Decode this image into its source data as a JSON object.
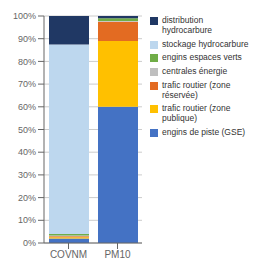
{
  "chart_data": {
    "type": "bar",
    "stacked": true,
    "categories": [
      "COVNM",
      "PM10"
    ],
    "series": [
      {
        "name": "engins de piste (GSE)",
        "color": "#4472C4",
        "values": [
          2.0,
          60.0
        ]
      },
      {
        "name": "trafic routier (zone\npublique)",
        "color": "#FFC000",
        "values": [
          0.5,
          29.0
        ]
      },
      {
        "name": "trafic routier (zone\nréservée)",
        "color": "#E36B22",
        "values": [
          0.5,
          8.5
        ]
      },
      {
        "name": "centrales énergie",
        "color": "#BFBFBF",
        "values": [
          0.3,
          0.3
        ]
      },
      {
        "name": "engins espaces verts",
        "color": "#70AD47",
        "values": [
          0.7,
          1.2
        ]
      },
      {
        "name": "stockage hydrocarbure",
        "color": "#BDD7EE",
        "values": [
          83.5,
          0.0
        ]
      },
      {
        "name": "distribution\nhydrocarbure",
        "color": "#203864",
        "values": [
          12.5,
          1.0
        ]
      }
    ],
    "ylim": [
      0,
      100
    ],
    "yticks": [
      {
        "value": 0,
        "label": "0%"
      },
      {
        "value": 10,
        "label": "10%"
      },
      {
        "value": 20,
        "label": "20%"
      },
      {
        "value": 30,
        "label": "30%"
      },
      {
        "value": 40,
        "label": "40%"
      },
      {
        "value": 50,
        "label": "50%"
      },
      {
        "value": 60,
        "label": "60%"
      },
      {
        "value": 70,
        "label": "70%"
      },
      {
        "value": 80,
        "label": "80%"
      },
      {
        "value": 90,
        "label": "90%"
      },
      {
        "value": 100,
        "label": "100%"
      }
    ],
    "grid": true,
    "legend": "right"
  }
}
